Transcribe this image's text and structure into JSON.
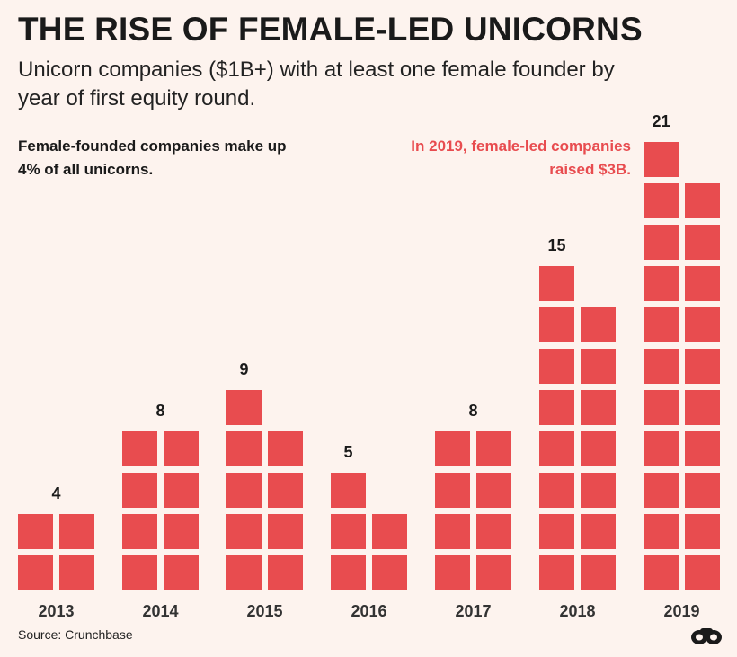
{
  "chart_data": {
    "type": "bar",
    "title": "THE RISE OF FEMALE-LED UNICORNS",
    "subtitle": "Unicorn companies ($1B+) with at least one female founder by year of first equity round.",
    "categories": [
      "2013",
      "2014",
      "2015",
      "2016",
      "2017",
      "2018",
      "2019"
    ],
    "values": [
      4,
      8,
      9,
      5,
      8,
      15,
      21
    ],
    "xlabel": "",
    "ylabel": "",
    "annotations": {
      "note": "Female-founded companies make up 4% of all unicorns.",
      "highlight": "In 2019, female-led companies raised $3B."
    },
    "source": "Source: Crunchbase"
  },
  "colors": {
    "bar": "#e84c4f",
    "background": "#fdf3ee",
    "text": "#1a1a1a",
    "accent_text": "#e84c4f"
  },
  "logo": {
    "icon": "binoculars-icon"
  }
}
